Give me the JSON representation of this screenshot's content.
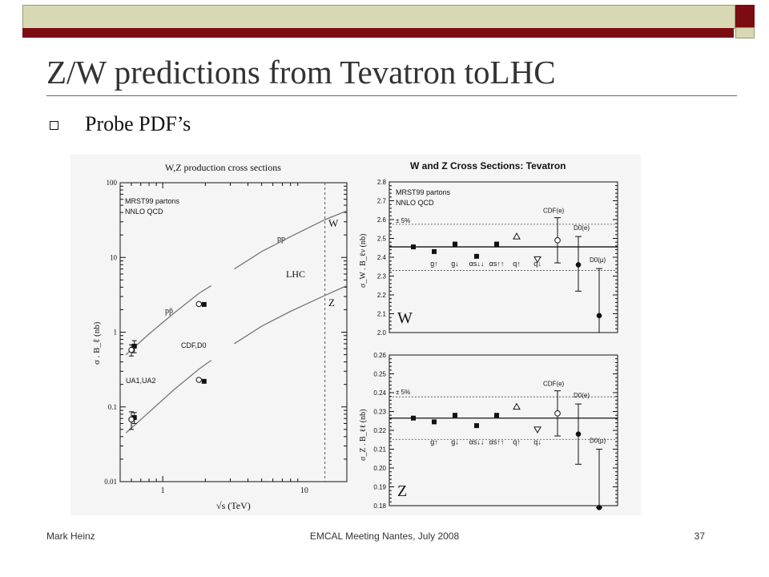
{
  "slide": {
    "title": "Z/W predictions from Tevatron toLHC",
    "bullet": "Probe PDF’s",
    "footer": {
      "left": "Mark Heinz",
      "center": "EMCAL Meeting Nantes, July 2008",
      "right": "37"
    },
    "colors": {
      "accent": "#7a0c12",
      "band": "#d8d8b4"
    },
    "bullet_icon": "hollow-square-icon"
  },
  "chart_data": [
    {
      "type": "line",
      "title": "W,Z production cross sections",
      "xlabel": "√s  (TeV)",
      "ylabel": "σ . B_ℓ  (nb)",
      "xscale": "log",
      "yscale": "log",
      "xlim": [
        0.5,
        20
      ],
      "ylim": [
        0.01,
        100
      ],
      "x_ticks": [
        {
          "v": 1,
          "label": "1"
        },
        {
          "v": 10,
          "label": "10"
        }
      ],
      "y_ticks": [
        {
          "v": 100,
          "label": "100"
        },
        {
          "v": 10,
          "label": "10"
        },
        {
          "v": 1,
          "label": "1"
        },
        {
          "v": 0.1,
          "label": "0.1"
        },
        {
          "v": 0.01,
          "label": "0.01"
        }
      ],
      "annotations": {
        "partons": "MRST99 partons",
        "order": "NNLO QCD",
        "pp": "pp",
        "ppbar": "pp̄",
        "lhc": "LHC",
        "cdf_d0": "CDF,D0",
        "ua": "UA1,UA2",
        "w": "W",
        "z": "Z"
      },
      "lhc_sqrt_s": 14,
      "series": [
        {
          "name": "W",
          "segments": [
            {
              "x": [
                0.55,
                0.8,
                1.2,
                1.8,
                2.2
              ],
              "y": [
                0.5,
                0.95,
                1.8,
                3.3,
                4.2
              ]
            },
            {
              "x": [
                3.2,
                5,
                8,
                14,
                20
              ],
              "y": [
                7,
                12,
                19,
                32,
                42
              ]
            }
          ]
        },
        {
          "name": "Z",
          "segments": [
            {
              "x": [
                0.55,
                0.8,
                1.2,
                1.8,
                2.2
              ],
              "y": [
                0.045,
                0.085,
                0.17,
                0.32,
                0.42
              ]
            },
            {
              "x": [
                3.2,
                5,
                8,
                14,
                20
              ],
              "y": [
                0.7,
                1.2,
                1.9,
                3.1,
                4.2
              ]
            }
          ]
        }
      ],
      "points": [
        {
          "x": 0.63,
          "y": 0.65,
          "err": 0.12,
          "style": "filled"
        },
        {
          "x": 0.6,
          "y": 0.58,
          "err": 0.1,
          "style": "open"
        },
        {
          "x": 1.8,
          "y": 2.38,
          "err": 0,
          "style": "open"
        },
        {
          "x": 1.96,
          "y": 2.35,
          "err": 0,
          "style": "filled"
        },
        {
          "x": 0.63,
          "y": 0.072,
          "err": 0.012,
          "style": "filled"
        },
        {
          "x": 0.6,
          "y": 0.068,
          "err": 0.018,
          "style": "open"
        },
        {
          "x": 1.8,
          "y": 0.23,
          "err": 0,
          "style": "open"
        },
        {
          "x": 1.96,
          "y": 0.22,
          "err": 0,
          "style": "filled"
        }
      ]
    },
    {
      "type": "scatter",
      "title": "W and Z Cross Sections: Tevatron",
      "panels": [
        {
          "name": "W",
          "ylabel": "σ_W . B_ℓν  (nb)",
          "ylim": [
            2.0,
            2.8
          ],
          "y_ticks": [
            {
              "v": 2.8,
              "label": "2.8"
            },
            {
              "v": 2.7,
              "label": "2.7"
            },
            {
              "v": 2.6,
              "label": "2.6"
            },
            {
              "v": 2.5,
              "label": "2.5"
            },
            {
              "v": 2.4,
              "label": "2.4"
            },
            {
              "v": 2.3,
              "label": "2.3"
            },
            {
              "v": 2.2,
              "label": "2.2"
            },
            {
              "v": 2.1,
              "label": "2.1"
            },
            {
              "v": 2.0,
              "label": "2.0"
            }
          ],
          "central": 2.455,
          "band": [
            2.575,
            2.33
          ],
          "band_label": "± 5%",
          "header": [
            "MRST99 partons",
            "NNLO QCD"
          ],
          "variations": [
            {
              "label": "g↑",
              "y": 2.43
            },
            {
              "label": "g↓",
              "y": 2.47
            },
            {
              "label": "αs↓↓",
              "y": 2.405
            },
            {
              "label": "αs↑↑",
              "y": 2.47
            },
            {
              "label": "q↑",
              "y": 2.51
            },
            {
              "label": "q↓",
              "y": 2.39
            }
          ],
          "reference": 2.455,
          "measurements": [
            {
              "label": "CDF(e)",
              "y": 2.49,
              "lo": 2.37,
              "hi": 2.61,
              "style": "open"
            },
            {
              "label": "D0(e)",
              "y": 2.36,
              "lo": 2.22,
              "hi": 2.51,
              "style": "filled"
            },
            {
              "label": "D0(μ)",
              "y": 2.09,
              "lo": 2.0,
              "hi": 2.34,
              "style": "filled"
            }
          ]
        },
        {
          "name": "Z",
          "ylabel": "σ_Z . B_ℓℓ  (nb)",
          "ylim": [
            0.18,
            0.26
          ],
          "y_ticks": [
            {
              "v": 0.26,
              "label": "0.26"
            },
            {
              "v": 0.25,
              "label": "0.25"
            },
            {
              "v": 0.24,
              "label": "0.24"
            },
            {
              "v": 0.23,
              "label": "0.23"
            },
            {
              "v": 0.22,
              "label": "0.22"
            },
            {
              "v": 0.21,
              "label": "0.21"
            },
            {
              "v": 0.2,
              "label": "0.20"
            },
            {
              "v": 0.19,
              "label": "0.19"
            },
            {
              "v": 0.18,
              "label": "0.18"
            }
          ],
          "central": 0.2265,
          "band": [
            0.2378,
            0.2152
          ],
          "band_label": "± 5%",
          "variations": [
            {
              "label": "g↑",
              "y": 0.2245
            },
            {
              "label": "g↓",
              "y": 0.228
            },
            {
              "label": "αs↓↓",
              "y": 0.2225
            },
            {
              "label": "αs↑↑",
              "y": 0.228
            },
            {
              "label": "q↑",
              "y": 0.2325
            },
            {
              "label": "q↓",
              "y": 0.2205
            }
          ],
          "reference": 0.2265,
          "measurements": [
            {
              "label": "CDF(e)",
              "y": 0.229,
              "lo": 0.217,
              "hi": 0.241,
              "style": "open"
            },
            {
              "label": "D0(e)",
              "y": 0.218,
              "lo": 0.202,
              "hi": 0.234,
              "style": "filled"
            },
            {
              "label": "D0(μ)",
              "y": 0.179,
              "lo": 0.179,
              "hi": 0.21,
              "style": "filled"
            }
          ]
        }
      ]
    }
  ]
}
